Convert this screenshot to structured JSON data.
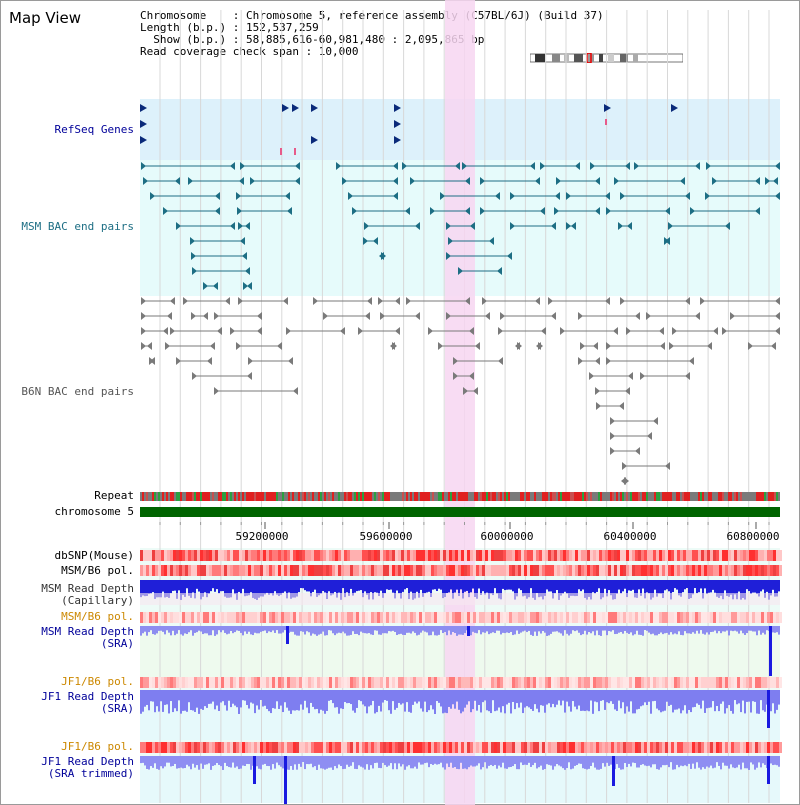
{
  "title": "Map View",
  "info": {
    "chromosome_line": "Chromosome    : Chromosome 5, reference assembly (C57BL/6J) (Build 37)",
    "length_line": "Length (b.p.) : 152,537,259",
    "show_line": "  Show (b.p.) : 58,885,616-60,981,480 : 2,095,865 bp",
    "coverage_line": "Read coverage check span : 10,000"
  },
  "tracks": {
    "refseq": "RefSeq Genes",
    "msm_bac": "MSM BAC end pairs",
    "b6n_bac": "B6N BAC end pairs",
    "repeat": "Repeat",
    "chromosome": "chromosome 5",
    "dbsnp": "dbSNP(Mouse)",
    "msm_b6_pol": "MSM/B6 pol.",
    "msm_read_depth_cap": "MSM Read Depth\n(Capillary)",
    "msm_b6_pol_2": "MSM/B6 pol.",
    "msm_read_depth_sra": "MSM Read Depth\n(SRA)",
    "jf1_b6_pol": "JF1/B6 pol.",
    "jf1_read_depth_sra": "JF1 Read Depth\n(SRA)",
    "jf1_b6_pol_2": "JF1/B6 pol.",
    "jf1_read_depth_trimmed": "JF1 Read Depth\n(SRA trimmed)"
  },
  "ruler": {
    "ticks": [
      "59200000",
      "59600000",
      "60000000",
      "60400000",
      "60800000"
    ]
  },
  "colors": {
    "refseq_bg": "#ddf1fb",
    "msm_bg": "#e6fbfb",
    "gene_blue": "#0a2a7a",
    "msm_feature": "#1d6e84",
    "b6n_feature": "#7a7a7a",
    "highlight": "#f7d6f1",
    "chromosome_bar": "#006400",
    "label_navy": "#000099",
    "label_orange": "#cc8800",
    "depth_blue": "#1f1fd8",
    "depth_light": "#8d8df0"
  }
}
